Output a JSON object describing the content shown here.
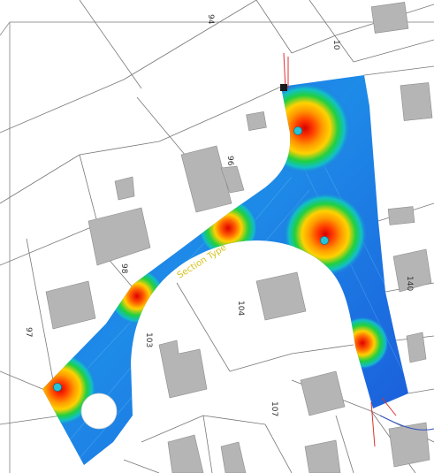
{
  "map": {
    "colors": {
      "plot_line": "#777777",
      "building": "#b5b5b5",
      "heat_low": "#1f3fd0",
      "heat_mid": "#20d040",
      "heat_high": "#ff2a00",
      "road_label": "#d4c21a",
      "marker": "#27c4d8"
    },
    "labels": {
      "road": "Section Type",
      "p94": "94",
      "p96": "96",
      "p98": "98",
      "p97": "97",
      "p103": "103",
      "p104": "104",
      "p107": "107",
      "p140": "140",
      "p10": "10"
    }
  }
}
